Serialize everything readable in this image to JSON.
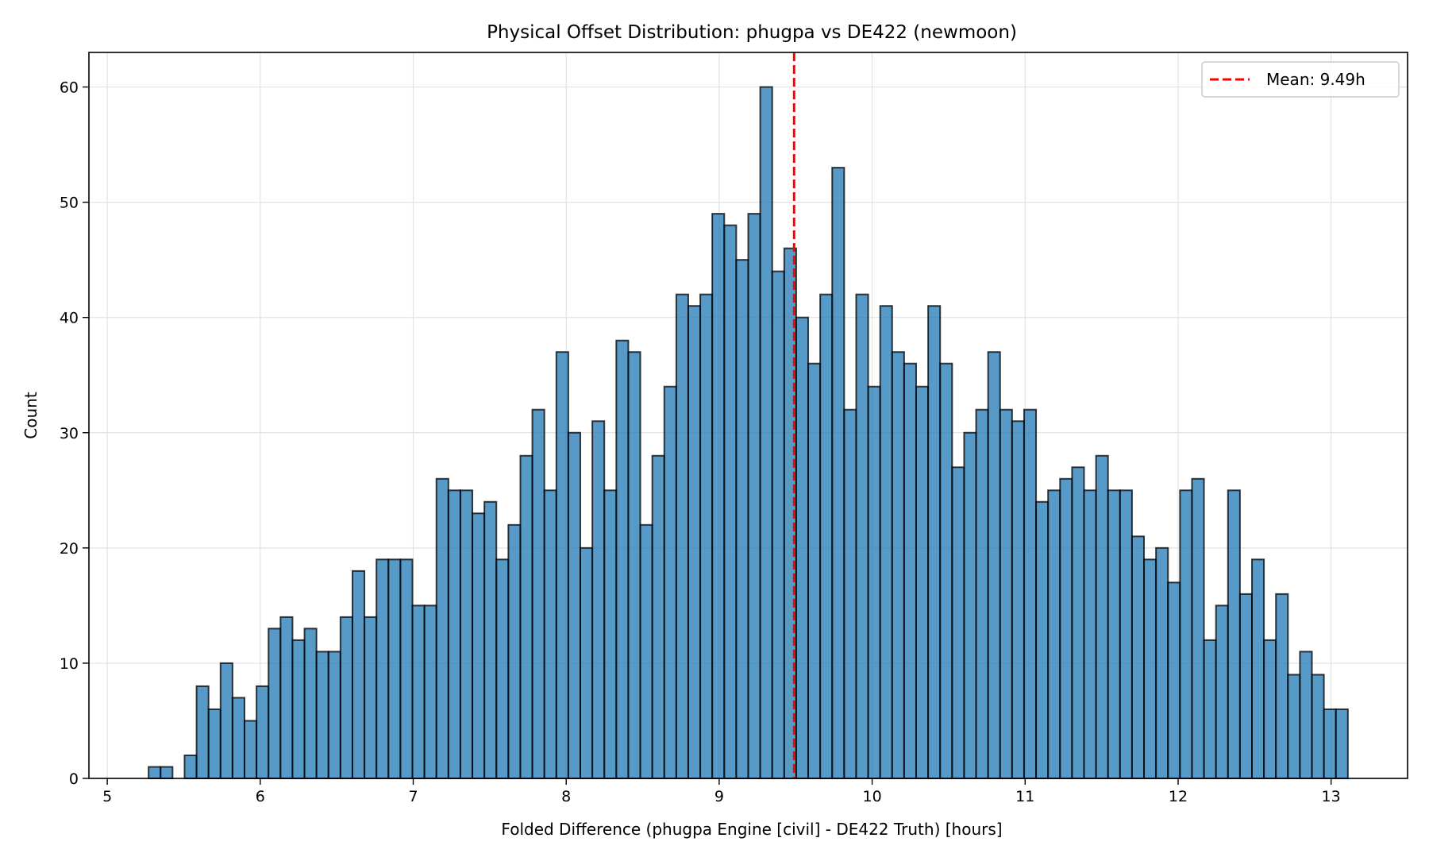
{
  "chart_data": {
    "type": "bar",
    "title": "Physical Offset Distribution: phugpa vs DE422 (newmoon)",
    "xlabel": "Folded Difference (phugpa Engine [civil] - DE422 Truth) [hours]",
    "ylabel": "Count",
    "xlim": [
      4.88,
      13.5
    ],
    "ylim": [
      0,
      63
    ],
    "xticks": [
      "5",
      "6",
      "7",
      "8",
      "9",
      "10",
      "11",
      "12",
      "13"
    ],
    "yticks": [
      "0",
      "10",
      "20",
      "30",
      "40",
      "50",
      "60"
    ],
    "grid": true,
    "bin_start": 5.27,
    "bin_end": 13.11,
    "bar_color": "#1f77b4",
    "bar_edge_color": "#000000",
    "values": [
      1,
      1,
      0,
      2,
      8,
      6,
      10,
      7,
      5,
      8,
      13,
      14,
      12,
      13,
      11,
      11,
      14,
      18,
      14,
      19,
      19,
      19,
      15,
      15,
      26,
      25,
      25,
      23,
      24,
      19,
      22,
      28,
      32,
      25,
      37,
      30,
      20,
      31,
      25,
      38,
      37,
      22,
      28,
      34,
      42,
      41,
      42,
      49,
      48,
      45,
      49,
      60,
      44,
      46,
      40,
      36,
      42,
      53,
      32,
      42,
      34,
      41,
      37,
      36,
      34,
      41,
      36,
      27,
      30,
      32,
      37,
      32,
      31,
      32,
      24,
      25,
      26,
      27,
      25,
      28,
      25,
      25,
      21,
      19,
      20,
      17,
      25,
      26,
      12,
      15,
      25,
      16,
      19,
      12,
      16,
      9,
      11,
      9,
      6,
      6
    ],
    "mean_line": {
      "value": 9.49,
      "color": "#ff0000",
      "label": "Mean: 9.49h"
    },
    "legend_placement": "top-right"
  }
}
